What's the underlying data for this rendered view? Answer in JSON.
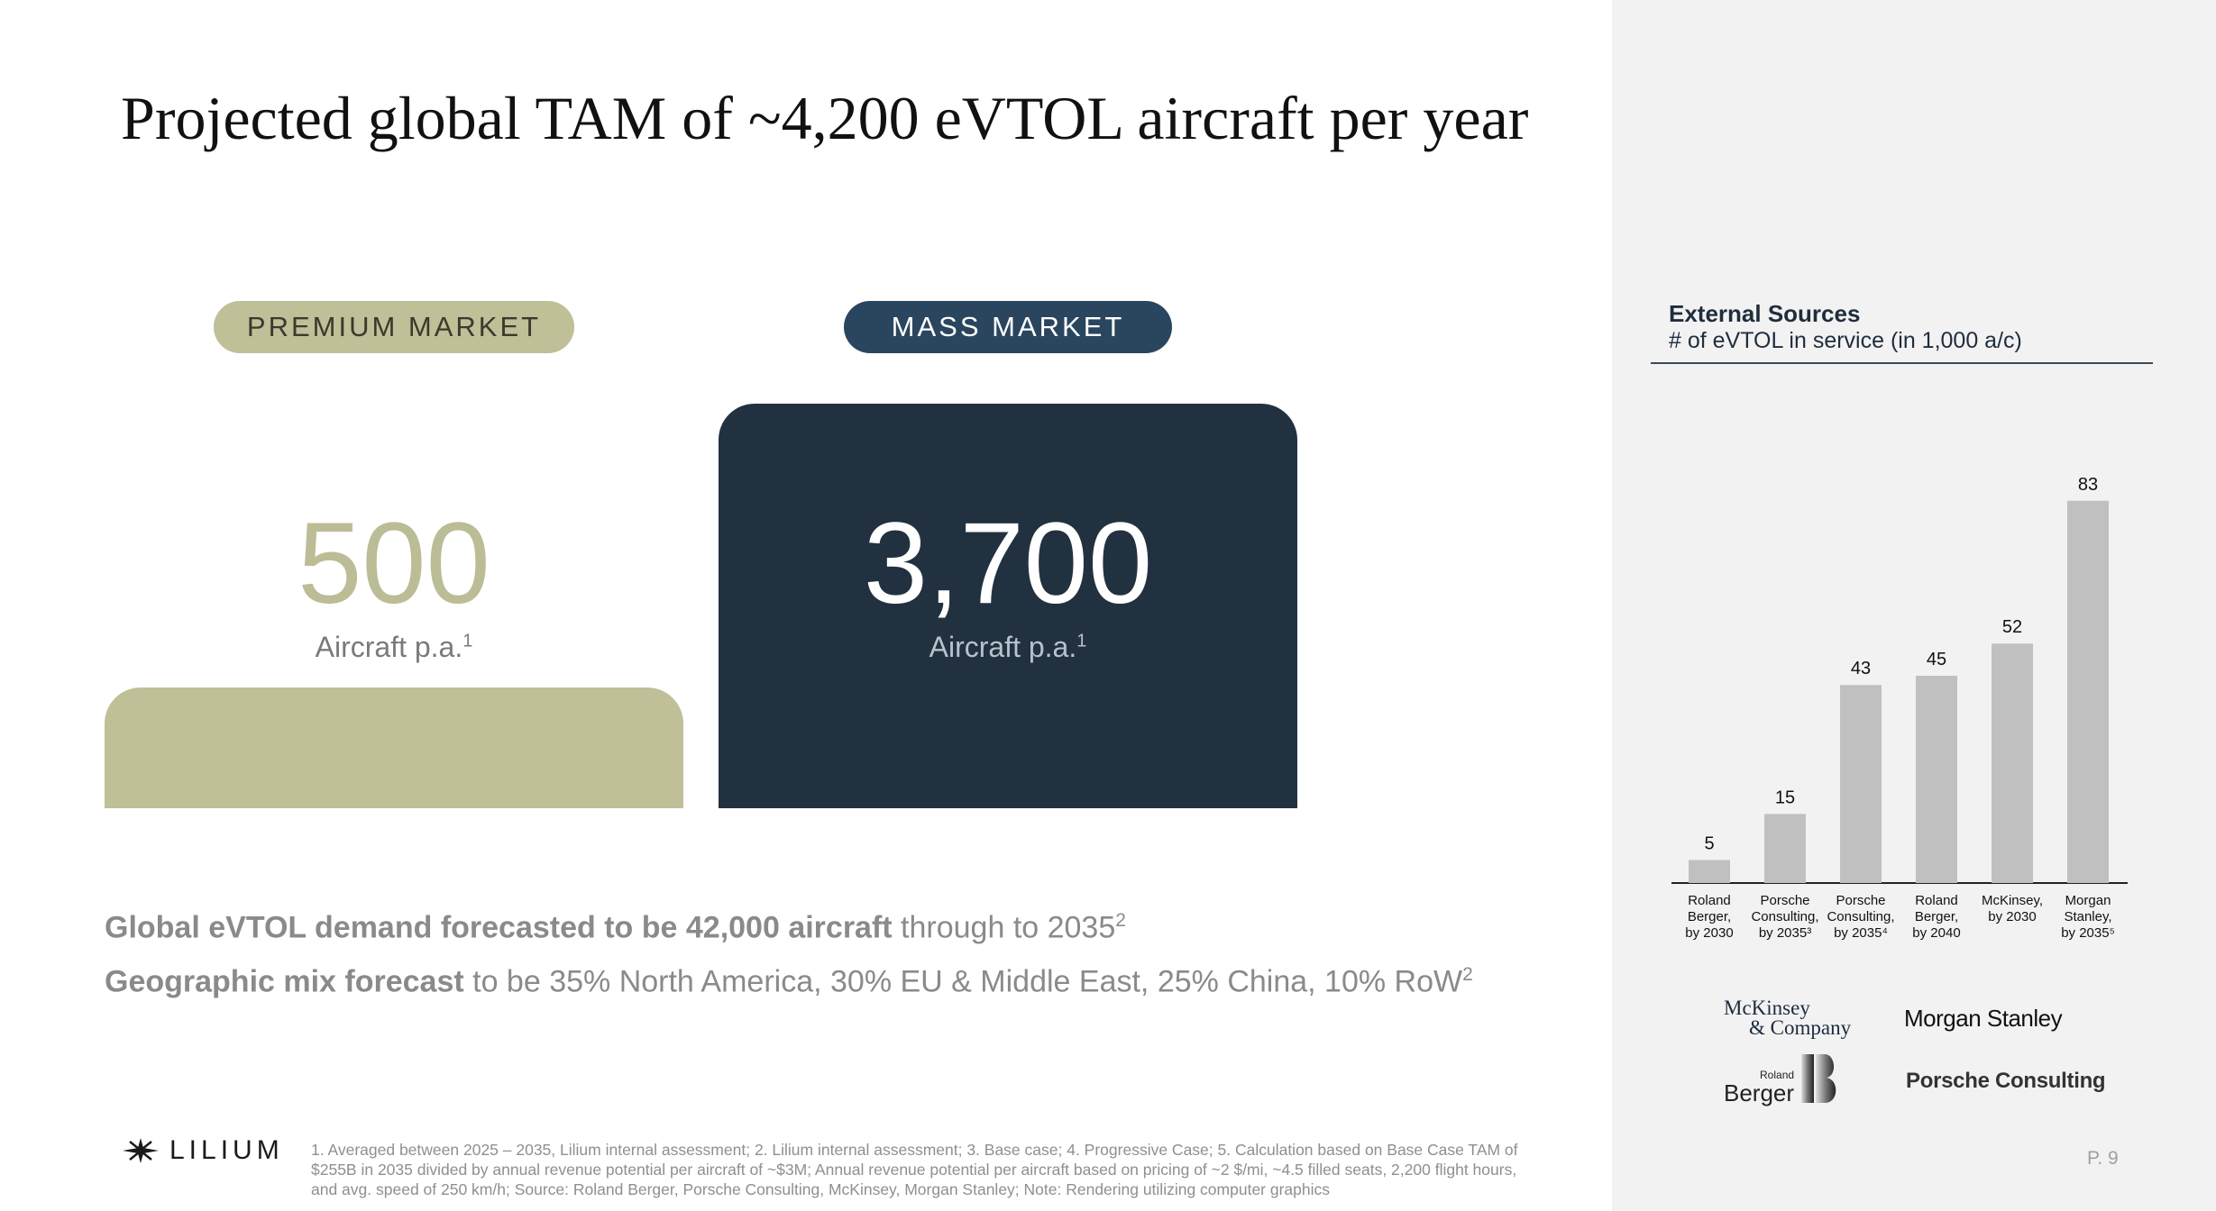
{
  "slide": {
    "title": "Projected global TAM of ~4,200 eVTOL aircraft per year",
    "page_number": "P. 9"
  },
  "premium": {
    "label": "PREMIUM MARKET",
    "value": "500",
    "unit": "Aircraft p.a.",
    "footnote_ref": "1"
  },
  "mass": {
    "label": "MASS MARKET",
    "value": "3,700",
    "unit": "Aircraft p.a.",
    "footnote_ref": "1"
  },
  "statements": [
    {
      "bold": "Global eVTOL demand forecasted to be 42,000 aircraft",
      "rest": " through to 2035",
      "ref": "2"
    },
    {
      "bold": "Geographic mix forecast",
      "rest": " to be 35% North America, 30% EU & Middle East, 25% China, 10% RoW",
      "ref": "2"
    }
  ],
  "brand": {
    "name": "LILIUM"
  },
  "footnote": "1. Averaged between 2025 – 2035, Lilium internal assessment; 2. Lilium internal assessment; 3. Base case; 4. Progressive Case; 5. Calculation based on Base Case TAM of $255B in 2035 divided by annual revenue potential per aircraft of ~$3M; Annual revenue potential per aircraft based on pricing of ~2 $/mi, ~4.5 filled seats, 2,200 flight hours, and avg. speed of 250 km/h; Source: Roland Berger, Porsche Consulting, McKinsey, Morgan Stanley; Note: Rendering utilizing computer graphics",
  "external": {
    "title": "External Sources",
    "subtitle": "# of eVTOL in service (in 1,000 a/c)"
  },
  "chart_data": {
    "type": "bar",
    "title": "",
    "xlabel": "",
    "ylabel": "",
    "ylim": [
      0,
      90
    ],
    "grid": false,
    "bar_color": "#c0c0c0",
    "categories": [
      [
        "Roland",
        "Berger,",
        "by 2030"
      ],
      [
        "Porsche",
        "Consulting,",
        "by 2035³"
      ],
      [
        "Porsche",
        "Consulting,",
        "by 2035⁴"
      ],
      [
        "Roland",
        "Berger,",
        "by 2040"
      ],
      [
        "McKinsey,",
        "by 2030"
      ],
      [
        "Morgan",
        "Stanley,",
        "by 2035⁵"
      ]
    ],
    "values": [
      5,
      15,
      43,
      45,
      52,
      83
    ]
  },
  "partners": {
    "mckinsey_line1": "McKinsey",
    "mckinsey_line2": "& Company",
    "morgan": "Morgan Stanley",
    "berger_small": "Roland",
    "berger_big": "Berger",
    "porsche": "Porsche Consulting"
  }
}
